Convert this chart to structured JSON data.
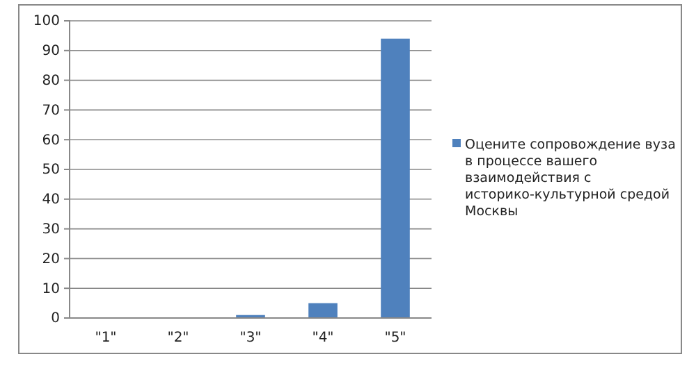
{
  "chart_data": {
    "type": "bar",
    "categories": [
      "\"1\"",
      "\"2\"",
      "\"3\"",
      "\"4\"",
      "\"5\""
    ],
    "series": [
      {
        "name": "Оцените сопровождение вуза в процессе вашего взаимодействия с историко-культурной средой Москвы",
        "color": "#4f81bd",
        "values": [
          0,
          0,
          1,
          5,
          94
        ]
      }
    ],
    "ylim": [
      0,
      100
    ],
    "yticks": [
      0,
      10,
      20,
      30,
      40,
      50,
      60,
      70,
      80,
      90,
      100
    ],
    "grid": "y",
    "legend": "right"
  }
}
